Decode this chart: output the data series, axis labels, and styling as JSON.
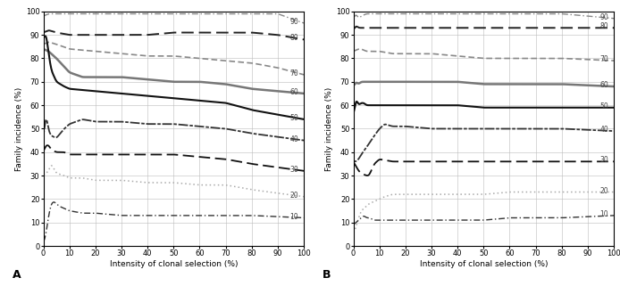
{
  "title_A": "A",
  "title_B": "B",
  "xlabel": "Intensity of clonal selection (%)",
  "ylabel": "Family incidence (%)",
  "ylim": [
    0,
    100
  ],
  "xlim": [
    0,
    100
  ],
  "xticks": [
    0,
    10,
    20,
    30,
    40,
    50,
    60,
    70,
    80,
    90,
    100
  ],
  "yticks": [
    0,
    10,
    20,
    30,
    40,
    50,
    60,
    70,
    80,
    90,
    100
  ],
  "background_color": "#ffffff",
  "grid_color": "#bbbbbb",
  "lines_A": {
    "90": {
      "color": "#888888",
      "ls": "dashdot",
      "lw": 1.0,
      "pts": [
        [
          0,
          98
        ],
        [
          2,
          99
        ],
        [
          5,
          99
        ],
        [
          10,
          99
        ],
        [
          20,
          99
        ],
        [
          30,
          99
        ],
        [
          40,
          99
        ],
        [
          50,
          99
        ],
        [
          60,
          99
        ],
        [
          70,
          99
        ],
        [
          80,
          99
        ],
        [
          90,
          99
        ],
        [
          100,
          95
        ]
      ]
    },
    "80": {
      "color": "#222222",
      "ls": "dashed",
      "lw": 1.4,
      "pts": [
        [
          0,
          91
        ],
        [
          2,
          92
        ],
        [
          5,
          91
        ],
        [
          10,
          90
        ],
        [
          20,
          90
        ],
        [
          30,
          90
        ],
        [
          40,
          90
        ],
        [
          50,
          91
        ],
        [
          60,
          91
        ],
        [
          70,
          91
        ],
        [
          80,
          91
        ],
        [
          90,
          90
        ],
        [
          100,
          88
        ]
      ]
    },
    "70": {
      "color": "#888888",
      "ls": "dashed_small",
      "lw": 1.2,
      "pts": [
        [
          0,
          86
        ],
        [
          2,
          87
        ],
        [
          5,
          86
        ],
        [
          10,
          84
        ],
        [
          20,
          83
        ],
        [
          30,
          82
        ],
        [
          40,
          81
        ],
        [
          50,
          81
        ],
        [
          60,
          80
        ],
        [
          70,
          79
        ],
        [
          80,
          78
        ],
        [
          90,
          76
        ],
        [
          100,
          73
        ]
      ]
    },
    "60": {
      "color": "#777777",
      "ls": "solid",
      "lw": 1.8,
      "pts": [
        [
          0,
          84
        ],
        [
          2,
          83
        ],
        [
          5,
          80
        ],
        [
          10,
          74
        ],
        [
          15,
          72
        ],
        [
          20,
          72
        ],
        [
          30,
          72
        ],
        [
          40,
          71
        ],
        [
          50,
          70
        ],
        [
          60,
          70
        ],
        [
          70,
          69
        ],
        [
          80,
          67
        ],
        [
          100,
          65
        ]
      ]
    },
    "50": {
      "color": "#111111",
      "ls": "solid",
      "lw": 1.5,
      "pts": [
        [
          0,
          88
        ],
        [
          1,
          91
        ],
        [
          2,
          82
        ],
        [
          3,
          75
        ],
        [
          5,
          70
        ],
        [
          8,
          68
        ],
        [
          10,
          67
        ],
        [
          20,
          66
        ],
        [
          30,
          65
        ],
        [
          40,
          64
        ],
        [
          50,
          63
        ],
        [
          60,
          62
        ],
        [
          70,
          61
        ],
        [
          80,
          58
        ],
        [
          100,
          54
        ]
      ]
    },
    "40": {
      "color": "#333333",
      "ls": "dotted_dash",
      "lw": 1.3,
      "pts": [
        [
          0,
          45
        ],
        [
          1,
          57
        ],
        [
          2,
          49
        ],
        [
          3,
          47
        ],
        [
          5,
          46
        ],
        [
          8,
          50
        ],
        [
          10,
          52
        ],
        [
          15,
          54
        ],
        [
          20,
          53
        ],
        [
          30,
          53
        ],
        [
          40,
          52
        ],
        [
          50,
          52
        ],
        [
          60,
          51
        ],
        [
          70,
          50
        ],
        [
          80,
          48
        ],
        [
          100,
          45
        ]
      ]
    },
    "30": {
      "color": "#111111",
      "ls": "dashed",
      "lw": 1.3,
      "pts": [
        [
          0,
          40
        ],
        [
          1,
          43
        ],
        [
          2,
          43
        ],
        [
          3,
          41
        ],
        [
          5,
          40
        ],
        [
          8,
          40
        ],
        [
          10,
          39
        ],
        [
          20,
          39
        ],
        [
          30,
          39
        ],
        [
          40,
          39
        ],
        [
          50,
          39
        ],
        [
          60,
          38
        ],
        [
          70,
          37
        ],
        [
          80,
          35
        ],
        [
          100,
          32
        ]
      ]
    },
    "20": {
      "color": "#aaaaaa",
      "ls": "dotted",
      "lw": 1.1,
      "pts": [
        [
          0,
          30
        ],
        [
          2,
          32
        ],
        [
          3,
          35
        ],
        [
          5,
          31
        ],
        [
          8,
          30
        ],
        [
          10,
          29
        ],
        [
          15,
          29
        ],
        [
          20,
          28
        ],
        [
          30,
          28
        ],
        [
          40,
          27
        ],
        [
          50,
          27
        ],
        [
          60,
          26
        ],
        [
          70,
          26
        ],
        [
          80,
          24
        ],
        [
          100,
          21
        ]
      ]
    },
    "10": {
      "color": "#333333",
      "ls": "dashdot",
      "lw": 1.0,
      "pts": [
        [
          0,
          1
        ],
        [
          1,
          5
        ],
        [
          2,
          13
        ],
        [
          3,
          18
        ],
        [
          4,
          19
        ],
        [
          5,
          18
        ],
        [
          6,
          17
        ],
        [
          8,
          16
        ],
        [
          10,
          15
        ],
        [
          15,
          14
        ],
        [
          20,
          14
        ],
        [
          30,
          13
        ],
        [
          40,
          13
        ],
        [
          50,
          13
        ],
        [
          60,
          13
        ],
        [
          70,
          13
        ],
        [
          80,
          13
        ],
        [
          100,
          12
        ]
      ]
    }
  },
  "lines_B": {
    "90": {
      "color": "#888888",
      "ls": "dashdot",
      "lw": 1.0,
      "pts": [
        [
          0,
          97
        ],
        [
          1,
          99
        ],
        [
          2,
          97
        ],
        [
          3,
          98
        ],
        [
          5,
          99
        ],
        [
          10,
          99
        ],
        [
          20,
          99
        ],
        [
          30,
          99
        ],
        [
          40,
          99
        ],
        [
          50,
          99
        ],
        [
          60,
          99
        ],
        [
          70,
          99
        ],
        [
          80,
          99
        ],
        [
          100,
          97
        ]
      ]
    },
    "80": {
      "color": "#222222",
      "ls": "dashed",
      "lw": 1.4,
      "pts": [
        [
          0,
          92
        ],
        [
          1,
          94
        ],
        [
          2,
          93
        ],
        [
          3,
          93
        ],
        [
          5,
          93
        ],
        [
          8,
          93
        ],
        [
          10,
          93
        ],
        [
          15,
          93
        ],
        [
          20,
          93
        ],
        [
          30,
          93
        ],
        [
          40,
          93
        ],
        [
          50,
          93
        ],
        [
          60,
          93
        ],
        [
          70,
          93
        ],
        [
          80,
          93
        ],
        [
          100,
          93
        ]
      ]
    },
    "70": {
      "color": "#888888",
      "ls": "dashed_small",
      "lw": 1.2,
      "pts": [
        [
          0,
          83
        ],
        [
          2,
          84
        ],
        [
          3,
          84
        ],
        [
          5,
          83
        ],
        [
          8,
          83
        ],
        [
          10,
          83
        ],
        [
          15,
          82
        ],
        [
          20,
          82
        ],
        [
          30,
          82
        ],
        [
          40,
          81
        ],
        [
          50,
          80
        ],
        [
          60,
          80
        ],
        [
          70,
          80
        ],
        [
          80,
          80
        ],
        [
          100,
          79
        ]
      ]
    },
    "60": {
      "color": "#777777",
      "ls": "solid",
      "lw": 1.8,
      "pts": [
        [
          0,
          68
        ],
        [
          1,
          70
        ],
        [
          2,
          69
        ],
        [
          3,
          70
        ],
        [
          5,
          70
        ],
        [
          8,
          70
        ],
        [
          10,
          70
        ],
        [
          15,
          70
        ],
        [
          20,
          70
        ],
        [
          30,
          70
        ],
        [
          40,
          70
        ],
        [
          50,
          69
        ],
        [
          60,
          69
        ],
        [
          70,
          69
        ],
        [
          80,
          69
        ],
        [
          100,
          68
        ]
      ]
    },
    "50": {
      "color": "#111111",
      "ls": "solid",
      "lw": 1.5,
      "pts": [
        [
          0,
          55
        ],
        [
          1,
          63
        ],
        [
          2,
          60
        ],
        [
          3,
          61
        ],
        [
          4,
          61
        ],
        [
          5,
          60
        ],
        [
          8,
          60
        ],
        [
          10,
          60
        ],
        [
          15,
          60
        ],
        [
          20,
          60
        ],
        [
          30,
          60
        ],
        [
          40,
          60
        ],
        [
          50,
          59
        ],
        [
          60,
          59
        ],
        [
          70,
          59
        ],
        [
          80,
          59
        ],
        [
          100,
          59
        ]
      ]
    },
    "40": {
      "color": "#333333",
      "ls": "dotted_dash",
      "lw": 1.3,
      "pts": [
        [
          0,
          36
        ],
        [
          1,
          36
        ],
        [
          2,
          37
        ],
        [
          3,
          39
        ],
        [
          5,
          42
        ],
        [
          8,
          47
        ],
        [
          10,
          50
        ],
        [
          12,
          52
        ],
        [
          15,
          51
        ],
        [
          20,
          51
        ],
        [
          30,
          50
        ],
        [
          40,
          50
        ],
        [
          50,
          50
        ],
        [
          60,
          50
        ],
        [
          70,
          50
        ],
        [
          80,
          50
        ],
        [
          100,
          49
        ]
      ]
    },
    "30": {
      "color": "#111111",
      "ls": "dashed",
      "lw": 1.3,
      "pts": [
        [
          0,
          36
        ],
        [
          1,
          34
        ],
        [
          2,
          32
        ],
        [
          3,
          31
        ],
        [
          5,
          30
        ],
        [
          6,
          30
        ],
        [
          8,
          35
        ],
        [
          10,
          37
        ],
        [
          15,
          36
        ],
        [
          20,
          36
        ],
        [
          30,
          36
        ],
        [
          40,
          36
        ],
        [
          50,
          36
        ],
        [
          60,
          36
        ],
        [
          70,
          36
        ],
        [
          80,
          36
        ],
        [
          100,
          36
        ]
      ]
    },
    "20": {
      "color": "#aaaaaa",
      "ls": "dotted",
      "lw": 1.1,
      "pts": [
        [
          0,
          5
        ],
        [
          1,
          8
        ],
        [
          2,
          12
        ],
        [
          3,
          15
        ],
        [
          4,
          16
        ],
        [
          5,
          17
        ],
        [
          6,
          18
        ],
        [
          8,
          19
        ],
        [
          10,
          20
        ],
        [
          12,
          21
        ],
        [
          15,
          22
        ],
        [
          20,
          22
        ],
        [
          30,
          22
        ],
        [
          40,
          22
        ],
        [
          50,
          22
        ],
        [
          60,
          23
        ],
        [
          70,
          23
        ],
        [
          80,
          23
        ],
        [
          100,
          23
        ]
      ]
    },
    "10": {
      "color": "#333333",
      "ls": "dashdot",
      "lw": 1.0,
      "pts": [
        [
          0,
          9
        ],
        [
          1,
          10
        ],
        [
          2,
          11
        ],
        [
          3,
          12
        ],
        [
          4,
          13
        ],
        [
          5,
          12
        ],
        [
          6,
          12
        ],
        [
          8,
          11
        ],
        [
          10,
          11
        ],
        [
          15,
          11
        ],
        [
          20,
          11
        ],
        [
          30,
          11
        ],
        [
          40,
          11
        ],
        [
          50,
          11
        ],
        [
          60,
          12
        ],
        [
          70,
          12
        ],
        [
          80,
          12
        ],
        [
          100,
          13
        ]
      ]
    }
  }
}
